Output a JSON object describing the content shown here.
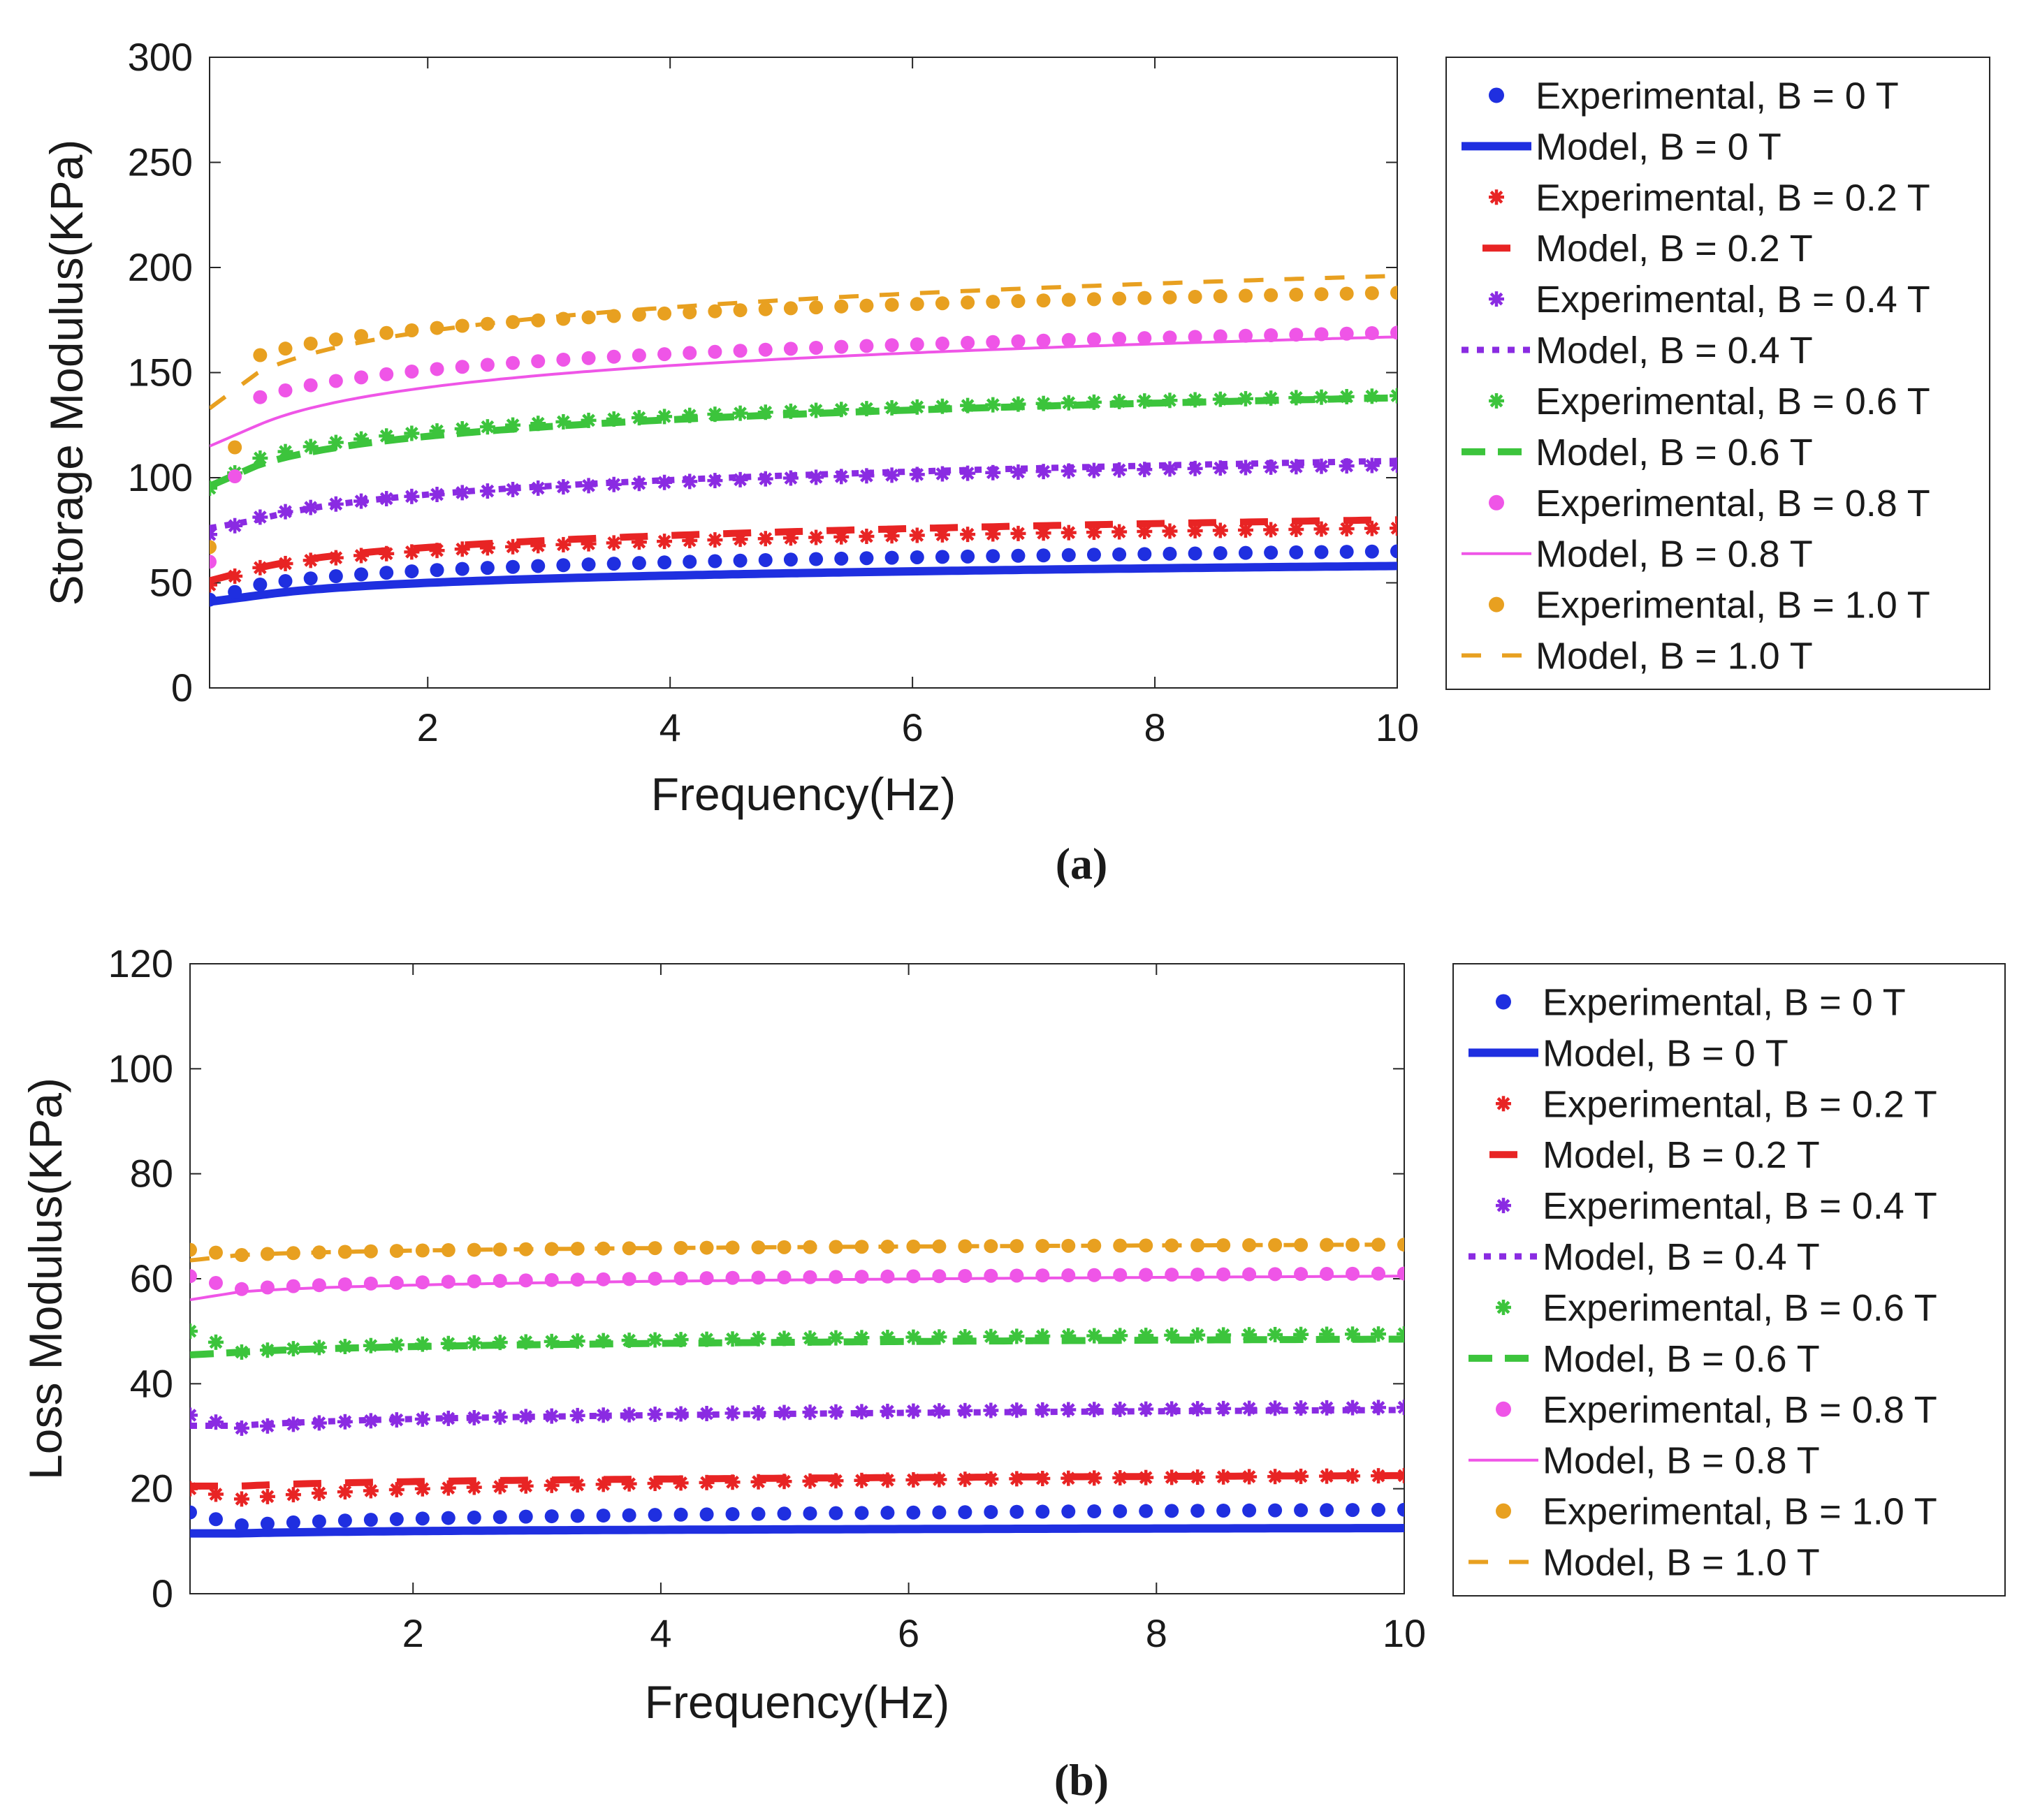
{
  "figure": {
    "caption_a": "(a)",
    "caption_b": "(b)"
  },
  "chart_data": [
    {
      "type": "scatter",
      "panel": "a",
      "title": "",
      "xlabel": "Frequency(Hz)",
      "ylabel": "Storage Modulus(KPa)",
      "xlim": [
        0.2,
        10
      ],
      "ylim": [
        0,
        300
      ],
      "xticks": [
        2,
        4,
        6,
        8,
        10
      ],
      "yticks": [
        0,
        50,
        100,
        150,
        200,
        250,
        300
      ],
      "legend_position": "outside-right",
      "series": [
        {
          "name": "Experimental, B = 0 T",
          "kind": "experimental",
          "color": "#1f2fe0",
          "marker": "dot",
          "start": 42,
          "settle": 49,
          "end": 65
        },
        {
          "name": "Model, B = 0 T",
          "kind": "model",
          "color": "#1f2fe0",
          "line": "solid-thick",
          "start": 41,
          "settle": 44,
          "end": 58
        },
        {
          "name": "Experimental, B = 0.2 T",
          "kind": "experimental",
          "color": "#e82424",
          "marker": "star",
          "start": 49,
          "settle": 57,
          "end": 76
        },
        {
          "name": "Model, B = 0.2 T",
          "kind": "model",
          "color": "#e82424",
          "line": "long-dash",
          "start": 51,
          "settle": 57,
          "end": 80
        },
        {
          "name": "Experimental, B = 0.4 T",
          "kind": "experimental",
          "color": "#8a2be2",
          "marker": "star",
          "start": 73,
          "settle": 81,
          "end": 106
        },
        {
          "name": "Model, B = 0.4 T",
          "kind": "model",
          "color": "#8a2be2",
          "line": "dotted",
          "start": 76,
          "settle": 80,
          "end": 108
        },
        {
          "name": "Experimental, B = 0.6 T",
          "kind": "experimental",
          "color": "#3cc43c",
          "marker": "star",
          "start": 95,
          "settle": 109,
          "end": 139
        },
        {
          "name": "Model, B = 0.6 T",
          "kind": "model",
          "color": "#3cc43c",
          "line": "dashed",
          "start": 96,
          "settle": 106,
          "end": 138
        },
        {
          "name": "Experimental, B = 0.8 T",
          "kind": "experimental",
          "color": "#ef55e7",
          "marker": "dot",
          "start": 60,
          "settle": 138,
          "end": 169
        },
        {
          "name": "Model, B = 0.8 T",
          "kind": "model",
          "color": "#ef55e7",
          "line": "thin",
          "start": 115,
          "settle": 125,
          "end": 167
        },
        {
          "name": "Experimental, B = 1.0 T",
          "kind": "experimental",
          "color": "#e8a020",
          "marker": "dot",
          "start": 67,
          "settle": 158,
          "end": 188
        },
        {
          "name": "Model, B = 1.0 T",
          "kind": "model",
          "color": "#e8a020",
          "line": "dash-spaced",
          "start": 133,
          "settle": 150,
          "end": 196
        }
      ]
    },
    {
      "type": "scatter",
      "panel": "b",
      "title": "",
      "xlabel": "Frequency(Hz)",
      "ylabel": "Loss Modulus(KPa)",
      "xlim": [
        0.2,
        10
      ],
      "ylim": [
        0,
        120
      ],
      "xticks": [
        2,
        4,
        6,
        8,
        10
      ],
      "yticks": [
        0,
        20,
        40,
        60,
        80,
        100,
        120
      ],
      "legend_position": "outside-right",
      "series": [
        {
          "name": "Experimental, B = 0 T",
          "kind": "experimental",
          "color": "#1f2fe0",
          "marker": "dot",
          "start": 15.5,
          "settle": 13,
          "end": 16
        },
        {
          "name": "Model, B = 0 T",
          "kind": "model",
          "color": "#1f2fe0",
          "line": "solid-thick",
          "start": 11.5,
          "settle": 11.5,
          "end": 12.5
        },
        {
          "name": "Experimental, B = 0.2 T",
          "kind": "experimental",
          "color": "#e82424",
          "marker": "star",
          "start": 20,
          "settle": 18,
          "end": 22.5
        },
        {
          "name": "Model, B = 0.2 T",
          "kind": "model",
          "color": "#e82424",
          "line": "long-dash",
          "start": 20.5,
          "settle": 20.5,
          "end": 22.5
        },
        {
          "name": "Experimental, B = 0.4 T",
          "kind": "experimental",
          "color": "#8a2be2",
          "marker": "star",
          "start": 34,
          "settle": 31.5,
          "end": 35.5
        },
        {
          "name": "Model, B = 0.4 T",
          "kind": "model",
          "color": "#8a2be2",
          "line": "dotted",
          "start": 32,
          "settle": 32,
          "end": 35
        },
        {
          "name": "Experimental, B = 0.6 T",
          "kind": "experimental",
          "color": "#3cc43c",
          "marker": "star",
          "start": 50,
          "settle": 46,
          "end": 49.5
        },
        {
          "name": "Model, B = 0.6 T",
          "kind": "model",
          "color": "#3cc43c",
          "line": "dashed",
          "start": 45.5,
          "settle": 46,
          "end": 48.5
        },
        {
          "name": "Experimental, B = 0.8 T",
          "kind": "experimental",
          "color": "#ef55e7",
          "marker": "dot",
          "start": 60.5,
          "settle": 58,
          "end": 61
        },
        {
          "name": "Model, B = 0.8 T",
          "kind": "model",
          "color": "#ef55e7",
          "line": "thin",
          "start": 56,
          "settle": 57.5,
          "end": 60.5
        },
        {
          "name": "Experimental, B = 1.0 T",
          "kind": "experimental",
          "color": "#e8a020",
          "marker": "dot",
          "start": 65.5,
          "settle": 64.5,
          "end": 66.5
        },
        {
          "name": "Model, B = 1.0 T",
          "kind": "model",
          "color": "#e8a020",
          "line": "dash-spaced",
          "start": 63.5,
          "settle": 64.5,
          "end": 66.5
        }
      ]
    }
  ]
}
